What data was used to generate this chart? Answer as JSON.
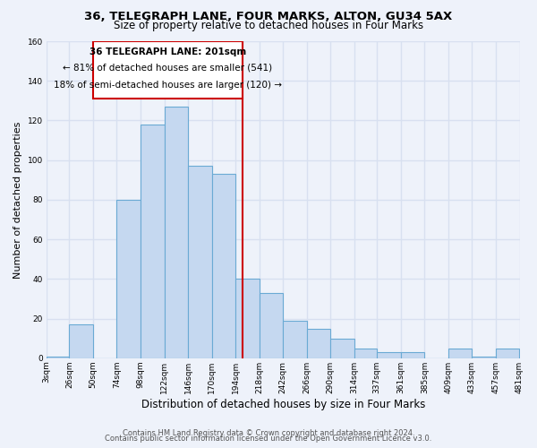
{
  "title": "36, TELEGRAPH LANE, FOUR MARKS, ALTON, GU34 5AX",
  "subtitle": "Size of property relative to detached houses in Four Marks",
  "xlabel": "Distribution of detached houses by size in Four Marks",
  "ylabel": "Number of detached properties",
  "bin_edges": [
    3,
    26,
    50,
    74,
    98,
    122,
    146,
    170,
    194,
    218,
    242,
    266,
    290,
    314,
    337,
    361,
    385,
    409,
    433,
    457,
    481
  ],
  "bar_heights": [
    1,
    17,
    0,
    80,
    118,
    127,
    97,
    93,
    40,
    33,
    19,
    15,
    10,
    5,
    3,
    3,
    0,
    5,
    1,
    5
  ],
  "bar_color": "#c5d8f0",
  "bar_edgecolor": "#6aaad4",
  "vline_x": 201,
  "vline_color": "#cc0000",
  "annotation_line1": "36 TELEGRAPH LANE: 201sqm",
  "annotation_line2": "← 81% of detached houses are smaller (541)",
  "annotation_line3": "18% of semi-detached houses are larger (120) →",
  "box_color": "#cc0000",
  "ylim": [
    0,
    160
  ],
  "yticks": [
    0,
    20,
    40,
    60,
    80,
    100,
    120,
    140,
    160
  ],
  "tick_labels": [
    "3sqm",
    "26sqm",
    "50sqm",
    "74sqm",
    "98sqm",
    "122sqm",
    "146sqm",
    "170sqm",
    "194sqm",
    "218sqm",
    "242sqm",
    "266sqm",
    "290sqm",
    "314sqm",
    "337sqm",
    "361sqm",
    "385sqm",
    "409sqm",
    "433sqm",
    "457sqm",
    "481sqm"
  ],
  "footer_line1": "Contains HM Land Registry data © Crown copyright and database right 2024.",
  "footer_line2": "Contains public sector information licensed under the Open Government Licence v3.0.",
  "bg_color": "#eef2fa",
  "grid_color": "#d8e0f0",
  "title_fontsize": 9.5,
  "subtitle_fontsize": 8.5,
  "xlabel_fontsize": 8.5,
  "ylabel_fontsize": 8,
  "tick_fontsize": 6.5,
  "footer_fontsize": 6,
  "annotation_fontsize": 7.5
}
